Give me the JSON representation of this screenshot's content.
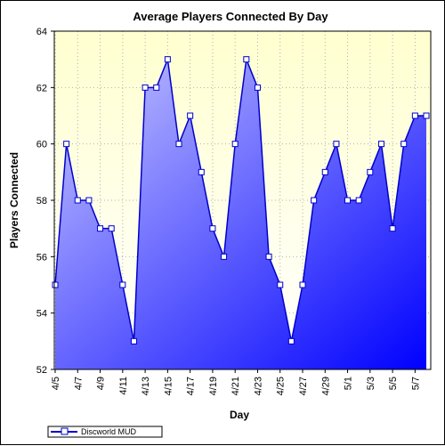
{
  "chart_data": {
    "type": "area",
    "title": "Average Players Connected By Day",
    "xlabel": "Day",
    "ylabel": "Players Connected",
    "ylim": [
      52,
      64
    ],
    "y_ticks": [
      52,
      54,
      56,
      58,
      60,
      62,
      64
    ],
    "x": [
      "4/5",
      "4/6",
      "4/7",
      "4/8",
      "4/9",
      "4/10",
      "4/11",
      "4/12",
      "4/13",
      "4/14",
      "4/15",
      "4/16",
      "4/17",
      "4/18",
      "4/19",
      "4/20",
      "4/21",
      "4/22",
      "4/23",
      "4/24",
      "4/25",
      "4/26",
      "4/27",
      "4/28",
      "4/29",
      "4/30",
      "5/1",
      "5/2",
      "5/3",
      "5/4",
      "5/5",
      "5/6",
      "5/7",
      "5/8"
    ],
    "x_tick_labels": [
      "4/5",
      "4/7",
      "4/9",
      "4/11",
      "4/13",
      "4/15",
      "4/17",
      "4/19",
      "4/21",
      "4/23",
      "4/25",
      "4/27",
      "4/29",
      "5/1",
      "5/3",
      "5/5",
      "5/7"
    ],
    "series": [
      {
        "name": "Discworld MUD",
        "values": [
          55,
          60,
          58,
          58,
          57,
          57,
          55,
          53,
          62,
          62,
          63,
          60,
          61,
          59,
          57,
          56,
          60,
          63,
          62,
          56,
          55,
          53,
          55,
          58,
          59,
          60,
          58,
          58,
          59,
          60,
          57,
          60,
          61,
          61
        ]
      }
    ],
    "grid": true,
    "legend_position": "bottom-left",
    "colors": {
      "plot_background_top": "#ffffd0",
      "plot_background_bottom": "#ffffff",
      "area_light": "#c8c8ff",
      "area_dark": "#0000ff",
      "line": "#0000cc",
      "marker_fill": "#ffffff"
    }
  }
}
